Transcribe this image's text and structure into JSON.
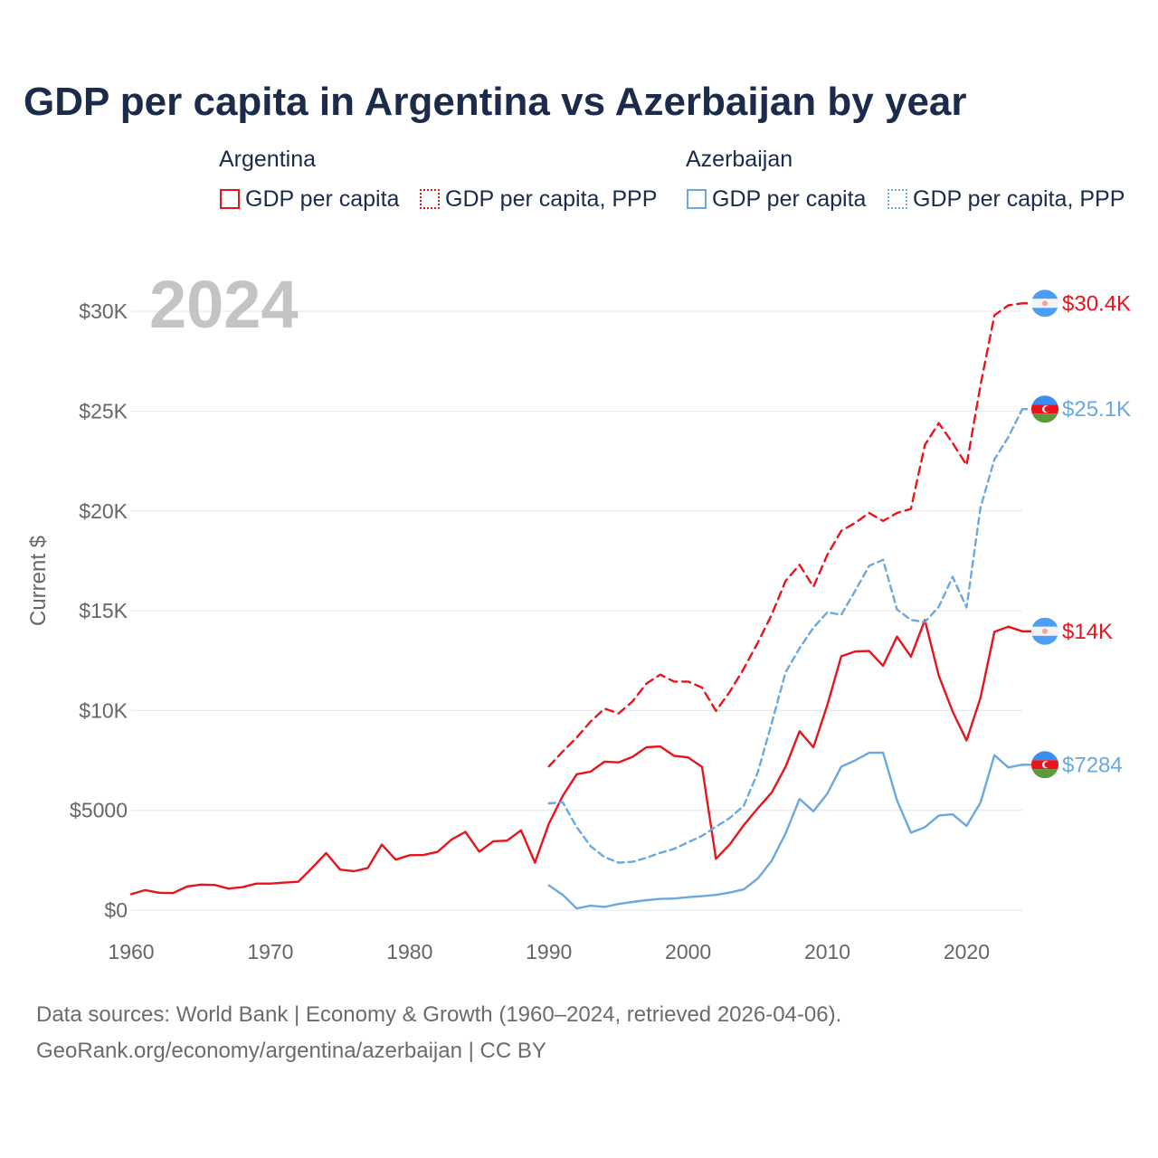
{
  "title": "GDP per capita in Argentina vs Azerbaijan by year",
  "legend": {
    "argentina": {
      "name": "Argentina",
      "gdp": "GDP per capita",
      "ppp": "GDP per capita, PPP"
    },
    "azerbaijan": {
      "name": "Azerbaijan",
      "gdp": "GDP per capita",
      "ppp": "GDP per capita, PPP"
    }
  },
  "colors": {
    "argentina": "#e8141b",
    "azerbaijan": "#6aa8de",
    "grid": "#e6e6e6",
    "axis_text": "#666666",
    "year_watermark": "#c4c4c4"
  },
  "footer": {
    "line1": "Data sources: World Bank | Economy & Growth (1960–2024, retrieved 2026-04-06).",
    "line2": "GeoRank.org/economy/argentina/azerbaijan | CC BY"
  },
  "chart_data": {
    "type": "line",
    "year_label": "2024",
    "ylabel": "Current $",
    "xlim": [
      1960,
      2024
    ],
    "ylim": [
      0,
      32000
    ],
    "x_ticks": [
      1960,
      1970,
      1980,
      1990,
      2000,
      2010,
      2020
    ],
    "x_tick_labels": [
      "1960",
      "1970",
      "1980",
      "1990",
      "2000",
      "2010",
      "2020"
    ],
    "y_ticks": [
      0,
      5000,
      10000,
      15000,
      20000,
      25000,
      30000
    ],
    "y_tick_labels": [
      "$0",
      "$5000",
      "$10K",
      "$15K",
      "$20K",
      "$25K",
      "$30K"
    ],
    "series": [
      {
        "name": "Argentina GDP per capita",
        "country": "argentina",
        "style": "solid",
        "end_label": "$14K",
        "years": [
          1960,
          1961,
          1962,
          1963,
          1964,
          1965,
          1966,
          1967,
          1968,
          1969,
          1970,
          1971,
          1972,
          1973,
          1974,
          1975,
          1976,
          1977,
          1978,
          1979,
          1980,
          1981,
          1982,
          1983,
          1984,
          1985,
          1986,
          1987,
          1988,
          1989,
          1990,
          1991,
          1992,
          1993,
          1994,
          1995,
          1996,
          1997,
          1998,
          1999,
          2000,
          2001,
          2002,
          2003,
          2004,
          2005,
          2006,
          2007,
          2008,
          2009,
          2010,
          2011,
          2012,
          2013,
          2014,
          2015,
          2016,
          2017,
          2018,
          2019,
          2020,
          2021,
          2022,
          2023,
          2024
        ],
        "values": [
          800,
          1000,
          870,
          850,
          1180,
          1280,
          1260,
          1080,
          1150,
          1330,
          1330,
          1380,
          1420,
          2120,
          2860,
          2030,
          1950,
          2110,
          3280,
          2530,
          2750,
          2760,
          2920,
          3530,
          3920,
          2930,
          3450,
          3480,
          4000,
          2380,
          4330,
          5730,
          6810,
          6940,
          7440,
          7400,
          7680,
          8160,
          8200,
          7730,
          7650,
          7170,
          2570,
          3300,
          4260,
          5100,
          5890,
          7190,
          8960,
          8160,
          10280,
          12720,
          12960,
          12980,
          12240,
          13700,
          12700,
          14530,
          11750,
          9950,
          8500,
          10640,
          13940,
          14200,
          13970
        ]
      },
      {
        "name": "Argentina GDP per capita, PPP",
        "country": "argentina",
        "style": "dashed",
        "end_label": "$30.4K",
        "years": [
          1990,
          1991,
          1992,
          1993,
          1994,
          1995,
          1996,
          1997,
          1998,
          1999,
          2000,
          2001,
          2002,
          2003,
          2004,
          2005,
          2006,
          2007,
          2008,
          2009,
          2010,
          2011,
          2012,
          2013,
          2014,
          2015,
          2016,
          2017,
          2018,
          2019,
          2020,
          2021,
          2022,
          2023,
          2024
        ],
        "values": [
          7200,
          7950,
          8650,
          9450,
          10100,
          9850,
          10450,
          11350,
          11800,
          11450,
          11450,
          11150,
          9980,
          10950,
          12100,
          13400,
          14800,
          16500,
          17300,
          16200,
          17800,
          19000,
          19400,
          19900,
          19500,
          19900,
          20100,
          23300,
          24400,
          23400,
          22300,
          26300,
          29800,
          30300,
          30400
        ]
      },
      {
        "name": "Azerbaijan GDP per capita",
        "country": "azerbaijan",
        "style": "solid",
        "end_label": "$7284",
        "years": [
          1990,
          1991,
          1992,
          1993,
          1994,
          1995,
          1996,
          1997,
          1998,
          1999,
          2000,
          2001,
          2002,
          2003,
          2004,
          2005,
          2006,
          2007,
          2008,
          2009,
          2010,
          2011,
          2012,
          2013,
          2014,
          2015,
          2016,
          2017,
          2018,
          2019,
          2020,
          2021,
          2022,
          2023,
          2024
        ],
        "values": [
          1240,
          760,
          80,
          220,
          160,
          310,
          410,
          500,
          560,
          580,
          650,
          700,
          760,
          880,
          1040,
          1580,
          2470,
          3850,
          5570,
          4950,
          5840,
          7190,
          7500,
          7880,
          7890,
          5500,
          3880,
          4150,
          4740,
          4800,
          4220,
          5390,
          7760,
          7150,
          7284
        ]
      },
      {
        "name": "Azerbaijan GDP per capita, PPP",
        "country": "azerbaijan",
        "style": "dotted",
        "end_label": "$25.1K",
        "years": [
          1990,
          1991,
          1992,
          1993,
          1994,
          1995,
          1996,
          1997,
          1998,
          1999,
          2000,
          2001,
          2002,
          2003,
          2004,
          2005,
          2006,
          2007,
          2008,
          2009,
          2010,
          2011,
          2012,
          2013,
          2014,
          2015,
          2016,
          2017,
          2018,
          2019,
          2020,
          2021,
          2022,
          2023,
          2024
        ],
        "values": [
          5350,
          5400,
          4150,
          3200,
          2650,
          2380,
          2420,
          2620,
          2870,
          3070,
          3400,
          3720,
          4180,
          4620,
          5230,
          6900,
          9360,
          11920,
          13120,
          14150,
          14920,
          14800,
          16000,
          17250,
          17550,
          15060,
          14540,
          14430,
          15200,
          16700,
          15160,
          20170,
          22580,
          23700,
          25100
        ]
      }
    ]
  }
}
